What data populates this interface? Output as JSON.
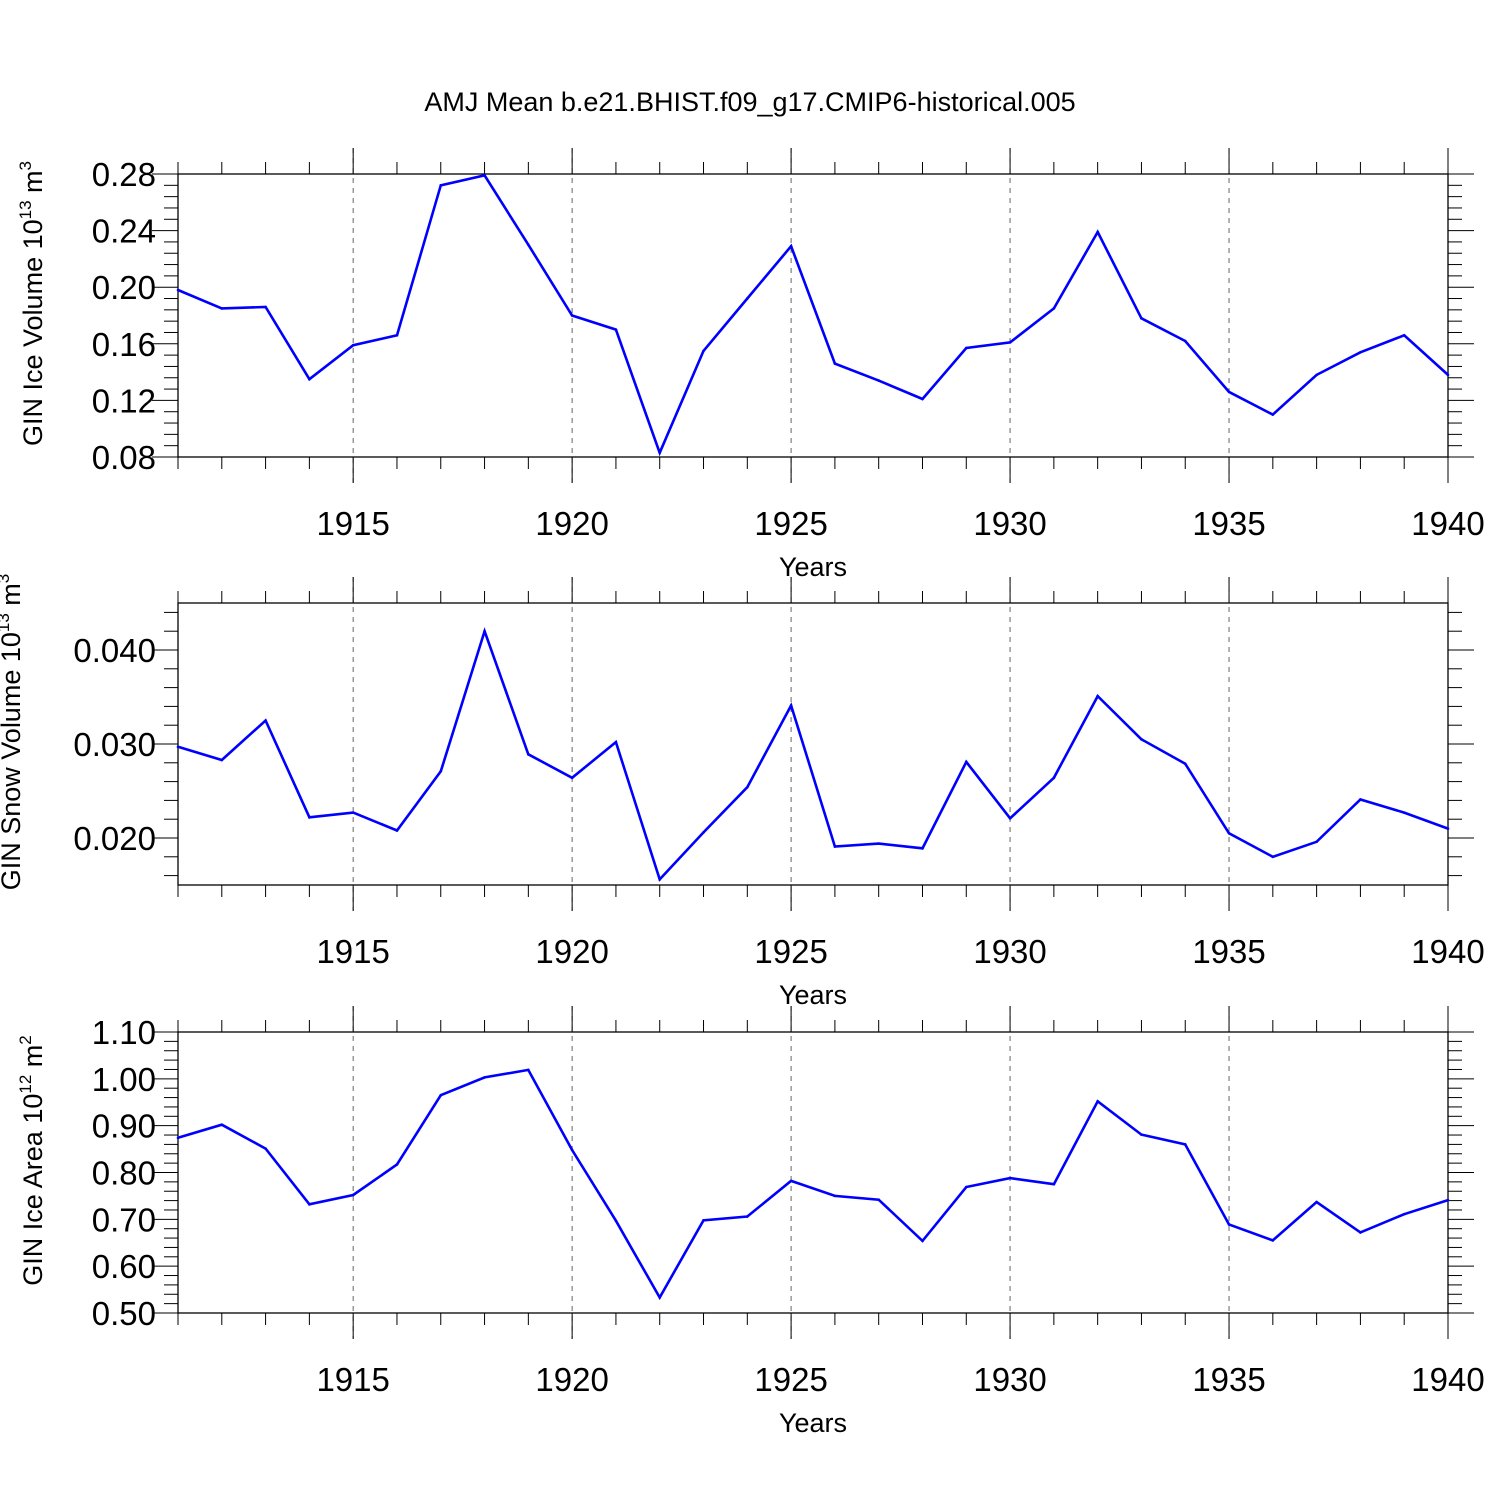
{
  "title": "AMJ Mean b.e21.BHIST.f09_g17.CMIP6-historical.005",
  "line_color": "#0000ff",
  "chart_data": [
    {
      "type": "line",
      "ylabel": {
        "main": "GIN Ice Volume 10",
        "exp": "13",
        "unit": " m",
        "unit_exp": "3"
      },
      "xlabel": "Years",
      "xlim": [
        1911,
        1940
      ],
      "ylim": [
        0.08,
        0.28
      ],
      "yticks": [
        0.08,
        0.12,
        0.16,
        0.2,
        0.24,
        0.28
      ],
      "ytick_labels": [
        "0.08",
        "0.12",
        "0.16",
        "0.20",
        "0.24",
        "0.28"
      ],
      "xticks": [
        1915,
        1920,
        1925,
        1930,
        1935,
        1940
      ],
      "xtick_labels": [
        "1915",
        "1920",
        "1925",
        "1930",
        "1935",
        "1940"
      ],
      "x": [
        1911,
        1912,
        1913,
        1914,
        1915,
        1916,
        1917,
        1918,
        1919,
        1920,
        1921,
        1922,
        1923,
        1924,
        1925,
        1926,
        1927,
        1928,
        1929,
        1930,
        1931,
        1932,
        1933,
        1934,
        1935,
        1936,
        1937,
        1938,
        1939,
        1940
      ],
      "values": [
        0.198,
        0.185,
        0.186,
        0.135,
        0.159,
        0.166,
        0.272,
        0.279,
        0.23,
        0.18,
        0.17,
        0.083,
        0.155,
        0.192,
        0.229,
        0.146,
        0.134,
        0.121,
        0.157,
        0.161,
        0.185,
        0.239,
        0.178,
        0.162,
        0.126,
        0.11,
        0.138,
        0.154,
        0.166,
        0.138
      ]
    },
    {
      "type": "line",
      "ylabel": {
        "main": "GIN Snow Volume 10",
        "exp": "13",
        "unit": " m",
        "unit_exp": "3"
      },
      "xlabel": "Years",
      "xlim": [
        1911,
        1940
      ],
      "ylim": [
        0.015,
        0.045
      ],
      "yticks": [
        0.02,
        0.03,
        0.04
      ],
      "ytick_labels": [
        "0.020",
        "0.030",
        "0.040"
      ],
      "xticks": [
        1915,
        1920,
        1925,
        1930,
        1935,
        1940
      ],
      "xtick_labels": [
        "1915",
        "1920",
        "1925",
        "1930",
        "1935",
        "1940"
      ],
      "x": [
        1911,
        1912,
        1913,
        1914,
        1915,
        1916,
        1917,
        1918,
        1919,
        1920,
        1921,
        1922,
        1923,
        1924,
        1925,
        1926,
        1927,
        1928,
        1929,
        1930,
        1931,
        1932,
        1933,
        1934,
        1935,
        1936,
        1937,
        1938,
        1939,
        1940
      ],
      "values": [
        0.0297,
        0.0283,
        0.0325,
        0.0222,
        0.0227,
        0.0208,
        0.0271,
        0.042,
        0.0289,
        0.0264,
        0.0302,
        0.0156,
        0.0206,
        0.0254,
        0.0341,
        0.0191,
        0.0194,
        0.0189,
        0.0281,
        0.0221,
        0.0264,
        0.0351,
        0.0305,
        0.0279,
        0.0205,
        0.018,
        0.0196,
        0.0241,
        0.0227,
        0.021
      ]
    },
    {
      "type": "line",
      "ylabel": {
        "main": "GIN Ice Area 10",
        "exp": "12",
        "unit": " m",
        "unit_exp": "2"
      },
      "xlabel": "Years",
      "xlim": [
        1911,
        1940
      ],
      "ylim": [
        0.5,
        1.1
      ],
      "yticks": [
        0.5,
        0.6,
        0.7,
        0.8,
        0.9,
        1.0,
        1.1
      ],
      "ytick_labels": [
        "0.50",
        "0.60",
        "0.70",
        "0.80",
        "0.90",
        "1.00",
        "1.10"
      ],
      "xticks": [
        1915,
        1920,
        1925,
        1930,
        1935,
        1940
      ],
      "xtick_labels": [
        "1915",
        "1920",
        "1925",
        "1930",
        "1935",
        "1940"
      ],
      "x": [
        1911,
        1912,
        1913,
        1914,
        1915,
        1916,
        1917,
        1918,
        1919,
        1920,
        1921,
        1922,
        1923,
        1924,
        1925,
        1926,
        1927,
        1928,
        1929,
        1930,
        1931,
        1932,
        1933,
        1934,
        1935,
        1936,
        1937,
        1938,
        1939,
        1940
      ],
      "values": [
        0.874,
        0.902,
        0.851,
        0.732,
        0.752,
        0.817,
        0.965,
        1.003,
        1.019,
        0.848,
        0.697,
        0.533,
        0.698,
        0.706,
        0.782,
        0.75,
        0.742,
        0.654,
        0.769,
        0.788,
        0.775,
        0.952,
        0.881,
        0.86,
        0.689,
        0.655,
        0.737,
        0.672,
        0.711,
        0.741
      ]
    }
  ]
}
